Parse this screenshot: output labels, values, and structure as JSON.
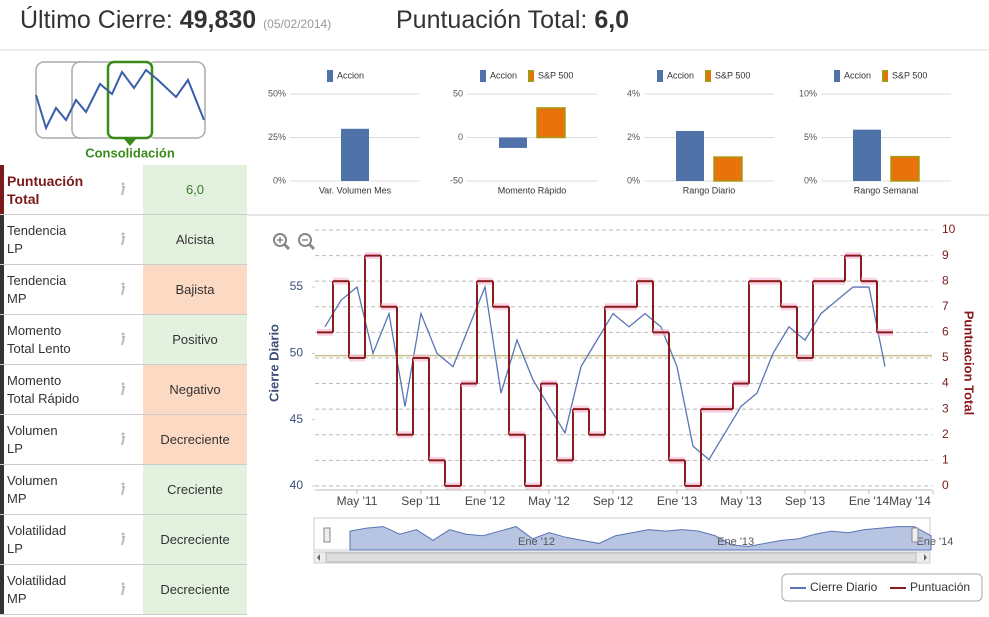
{
  "header": {
    "last_close_label": "Último Cierre:",
    "last_close": "49,830",
    "date": "(05/02/2014)",
    "score_label": "Puntuación Total:",
    "score": "6,0"
  },
  "thumbnail": {
    "label": "Consolidación"
  },
  "table": {
    "rows": [
      {
        "label": "Puntuación\nTotal",
        "value": "6,0",
        "color": "#e3f1df"
      },
      {
        "label": "Tendencia\nLP",
        "value": "Alcista",
        "color": "#e3f1df"
      },
      {
        "label": "Tendencia\nMP",
        "value": "Bajista",
        "color": "#fcd9c2"
      },
      {
        "label": "Momento\nTotal Lento",
        "value": "Positivo",
        "color": "#e3f1df"
      },
      {
        "label": "Momento\nTotal Rápido",
        "value": "Negativo",
        "color": "#fcd9c2"
      },
      {
        "label": "Volumen\nLP",
        "value": "Decreciente",
        "color": "#fcd9c2"
      },
      {
        "label": "Volumen\nMP",
        "value": "Creciente",
        "color": "#e3f1df"
      },
      {
        "label": "Volatilidad\nLP",
        "value": "Decreciente",
        "color": "#e3f1df"
      },
      {
        "label": "Volatilidad\nMP",
        "value": "Decreciente",
        "color": "#e3f1df"
      }
    ]
  },
  "chart_data": [
    {
      "type": "bar",
      "categories": [
        "Var. Volumen Mes"
      ],
      "series": [
        {
          "name": "Accion",
          "color": "#4f73a8",
          "values": [
            30
          ]
        }
      ],
      "ylim": [
        0,
        50
      ],
      "yticks": [
        {
          "value": 0,
          "label": "0%"
        },
        {
          "value": 25,
          "label": "25%"
        },
        {
          "value": 50,
          "label": "50%"
        }
      ],
      "grid": true
    },
    {
      "type": "bar",
      "categories": [
        "Momento Rápido"
      ],
      "series": [
        {
          "name": "Accion",
          "color": "#4f73a8",
          "values": [
            -12
          ]
        },
        {
          "name": "S&P 500",
          "color": "#e8720c",
          "border": "#a59b12",
          "values": [
            34
          ]
        }
      ],
      "ylim": [
        -50,
        50
      ],
      "yticks": [
        -50,
        0,
        50
      ],
      "grid": true
    },
    {
      "type": "bar",
      "categories": [
        "Rango Diario"
      ],
      "series": [
        {
          "name": "Accion",
          "color": "#4f73a8",
          "values": [
            2.3
          ]
        },
        {
          "name": "S&P 500",
          "color": "#e8720c",
          "border": "#a59b12",
          "values": [
            1.1
          ]
        }
      ],
      "ylim": [
        0,
        4
      ],
      "yticks": [
        {
          "value": 0,
          "label": "0%"
        },
        {
          "value": 2,
          "label": "2%"
        },
        {
          "value": 4,
          "label": "4%"
        }
      ],
      "grid": true
    },
    {
      "type": "bar",
      "categories": [
        "Rango Semanal"
      ],
      "series": [
        {
          "name": "Accion",
          "color": "#4f73a8",
          "values": [
            5.9
          ]
        },
        {
          "name": "S&P 500",
          "color": "#e8720c",
          "border": "#a59b12",
          "values": [
            2.8
          ]
        }
      ],
      "ylim": [
        0,
        10
      ],
      "yticks": [
        {
          "value": 0,
          "label": "0%"
        },
        {
          "value": 5,
          "label": "5%"
        },
        {
          "value": 10,
          "label": "10%"
        }
      ],
      "grid": true
    },
    {
      "type": "line",
      "y_label": "Cierre Diario",
      "y2_label": "Puntuacion Total",
      "categories": [
        null,
        null,
        "May '11",
        null,
        null,
        null,
        "Sep '11",
        null,
        null,
        null,
        "Ene '12",
        null,
        null,
        null,
        "May '12",
        null,
        null,
        null,
        "Sep '12",
        null,
        null,
        null,
        "Ene '13",
        null,
        null,
        null,
        "May '13",
        null,
        null,
        null,
        "Sep '13",
        null,
        null,
        null,
        "Ene '14",
        null,
        null,
        null,
        "May '14"
      ],
      "series": [
        {
          "name": "Cierre Diario",
          "color": "#5a74b4",
          "values": [
            52,
            54,
            55,
            50,
            53,
            46,
            53,
            50,
            49,
            52,
            55,
            47,
            51,
            48,
            46,
            44,
            49,
            51,
            53,
            52,
            53,
            52,
            49,
            43,
            42,
            44,
            46,
            47,
            50,
            52,
            51,
            53,
            54,
            55,
            55,
            49,
            null,
            null,
            null
          ]
        },
        {
          "name": "Puntuación",
          "color": "#8b1a1a",
          "axis": "y2",
          "step": true,
          "values": [
            6,
            8,
            5,
            9,
            7,
            2,
            5,
            1,
            0,
            4,
            8,
            7,
            2,
            0,
            4,
            1,
            3,
            2,
            7,
            7,
            8,
            6,
            1,
            0,
            3,
            3,
            4,
            8,
            8,
            7,
            5,
            8,
            8,
            9,
            8,
            6,
            null,
            null,
            null
          ]
        }
      ],
      "reference_line": 49.83,
      "reference_color": "#c8c28a",
      "ylim": [
        39.7,
        59.3
      ],
      "yticks": [
        40,
        45,
        50,
        55
      ],
      "y2lim": [
        -0.16,
        10
      ],
      "y2ticks": [
        0,
        1,
        2,
        3,
        4,
        5,
        6,
        7,
        8,
        9,
        10
      ],
      "grid": true
    }
  ]
}
